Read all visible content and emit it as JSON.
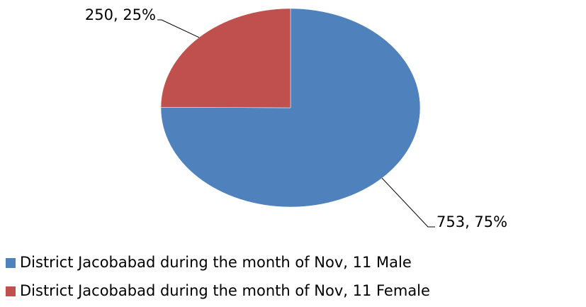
{
  "chart_data": {
    "type": "pie",
    "categories": [
      "District Jacobabad during the month of Nov, 11 Male",
      "District Jacobabad during the month of Nov, 11 Female"
    ],
    "values": [
      753,
      250
    ],
    "value_labels": [
      "753, 75%",
      "250, 25%"
    ],
    "colors": [
      "#4f81bd",
      "#c0504d"
    ],
    "legend": "bottom"
  }
}
